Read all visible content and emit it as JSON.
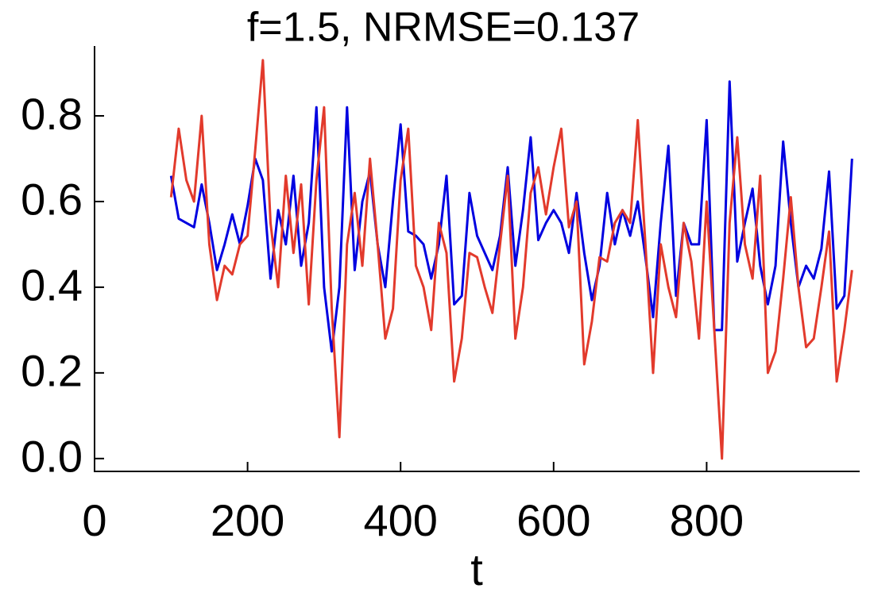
{
  "chart_data": {
    "type": "line",
    "title": "f=1.5, NRMSE=0.137",
    "xlabel": "t",
    "x": [
      100,
      110,
      120,
      130,
      140,
      150,
      160,
      170,
      180,
      190,
      200,
      210,
      220,
      230,
      240,
      250,
      260,
      270,
      280,
      290,
      300,
      310,
      320,
      330,
      340,
      350,
      360,
      370,
      380,
      390,
      400,
      410,
      420,
      430,
      440,
      450,
      460,
      470,
      480,
      490,
      500,
      510,
      520,
      530,
      540,
      550,
      560,
      570,
      580,
      590,
      600,
      610,
      620,
      630,
      640,
      650,
      660,
      670,
      680,
      690,
      700,
      710,
      720,
      730,
      740,
      750,
      760,
      770,
      780,
      790,
      800,
      810,
      820,
      830,
      840,
      850,
      860,
      870,
      880,
      890,
      900,
      910,
      920,
      930,
      940,
      950,
      960,
      970,
      980,
      990
    ],
    "series": [
      {
        "color": "#0000e0",
        "values": [
          0.66,
          0.56,
          0.55,
          0.54,
          0.64,
          0.55,
          0.44,
          0.5,
          0.57,
          0.5,
          0.59,
          0.7,
          0.65,
          0.42,
          0.58,
          0.5,
          0.66,
          0.45,
          0.55,
          0.82,
          0.4,
          0.25,
          0.4,
          0.82,
          0.44,
          0.6,
          0.67,
          0.5,
          0.4,
          0.6,
          0.78,
          0.53,
          0.52,
          0.5,
          0.42,
          0.5,
          0.66,
          0.36,
          0.38,
          0.62,
          0.52,
          0.48,
          0.44,
          0.52,
          0.68,
          0.45,
          0.58,
          0.75,
          0.51,
          0.55,
          0.58,
          0.55,
          0.48,
          0.62,
          0.48,
          0.37,
          0.45,
          0.62,
          0.5,
          0.58,
          0.52,
          0.6,
          0.47,
          0.33,
          0.55,
          0.73,
          0.38,
          0.55,
          0.5,
          0.5,
          0.79,
          0.3,
          0.3,
          0.88,
          0.46,
          0.55,
          0.63,
          0.45,
          0.36,
          0.45,
          0.74,
          0.55,
          0.4,
          0.45,
          0.42,
          0.49,
          0.67,
          0.35,
          0.38,
          0.7
        ]
      },
      {
        "color": "#e23a2c",
        "values": [
          0.61,
          0.77,
          0.65,
          0.6,
          0.8,
          0.5,
          0.37,
          0.45,
          0.43,
          0.5,
          0.52,
          0.72,
          0.93,
          0.55,
          0.4,
          0.66,
          0.48,
          0.64,
          0.36,
          0.65,
          0.82,
          0.35,
          0.05,
          0.5,
          0.62,
          0.45,
          0.7,
          0.5,
          0.28,
          0.35,
          0.65,
          0.77,
          0.45,
          0.4,
          0.3,
          0.55,
          0.48,
          0.18,
          0.28,
          0.48,
          0.47,
          0.4,
          0.34,
          0.5,
          0.66,
          0.28,
          0.4,
          0.62,
          0.68,
          0.57,
          0.68,
          0.77,
          0.54,
          0.6,
          0.22,
          0.32,
          0.47,
          0.46,
          0.55,
          0.58,
          0.55,
          0.79,
          0.5,
          0.2,
          0.5,
          0.4,
          0.33,
          0.55,
          0.46,
          0.28,
          0.6,
          0.3,
          0.0,
          0.55,
          0.75,
          0.5,
          0.42,
          0.66,
          0.2,
          0.25,
          0.42,
          0.61,
          0.4,
          0.26,
          0.28,
          0.4,
          0.53,
          0.18,
          0.3,
          0.44
        ]
      }
    ],
    "xlim": [
      0,
      1000
    ],
    "xticks": [
      0,
      200,
      400,
      600,
      800
    ],
    "ylim": [
      -0.03,
      0.963
    ],
    "yticks": [
      {
        "value": 0,
        "label": "0.0"
      },
      0.2,
      0.4,
      0.6,
      0.8
    ]
  }
}
